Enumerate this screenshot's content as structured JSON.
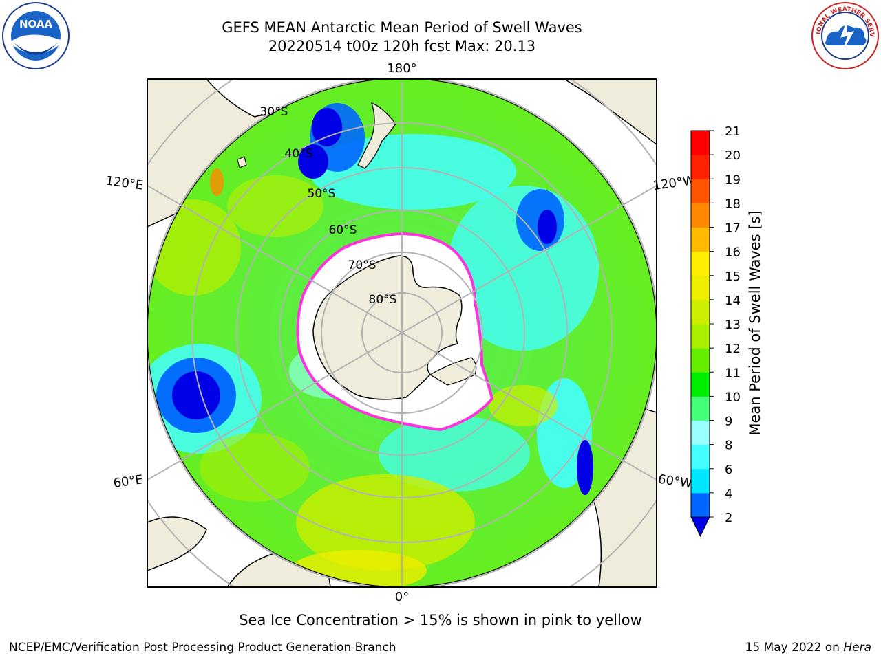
{
  "title": {
    "line1": "GEFS MEAN Antarctic Mean Period of Swell Waves",
    "line2": "20220514 t00z 120h fcst   Max: 20.13"
  },
  "map": {
    "longitude_labels": [
      "180°",
      "120°E",
      "120°W",
      "60°E",
      "60°W",
      "0°"
    ],
    "latitude_labels": [
      "30°S",
      "40°S",
      "50°S",
      "60°S",
      "70°S",
      "80°S"
    ],
    "colors": {
      "land": "#efecdc",
      "ice": "#ffffff",
      "ice_edge": "#ff33dd",
      "grid": "#b3b3b3"
    }
  },
  "colorbar": {
    "label": "Mean Period of Swell Waves [s]",
    "ticks": [
      "2",
      "4",
      "6",
      "8",
      "9",
      "10",
      "11",
      "12",
      "13",
      "14",
      "15",
      "16",
      "17",
      "18",
      "19",
      "20",
      "21"
    ],
    "colors": [
      "#0000e6",
      "#0066ff",
      "#00e6ff",
      "#44ffff",
      "#99ffff",
      "#44ff77",
      "#00ee00",
      "#66ee00",
      "#aaee00",
      "#ccee00",
      "#eeee00",
      "#ffee00",
      "#ffbb00",
      "#ff8800",
      "#ff5500",
      "#ff2200",
      "#ff0000"
    ]
  },
  "note": "Sea Ice Concentration > 15% is shown in pink to yellow",
  "credit": {
    "left": "NCEP/EMC/Verification Post Processing Product Generation Branch",
    "date": "15 May 2022 on",
    "host": "Hera"
  },
  "logos": {
    "noaa_text": "NOAA",
    "nws_text": "NATIONAL WEATHER SERVICE"
  }
}
